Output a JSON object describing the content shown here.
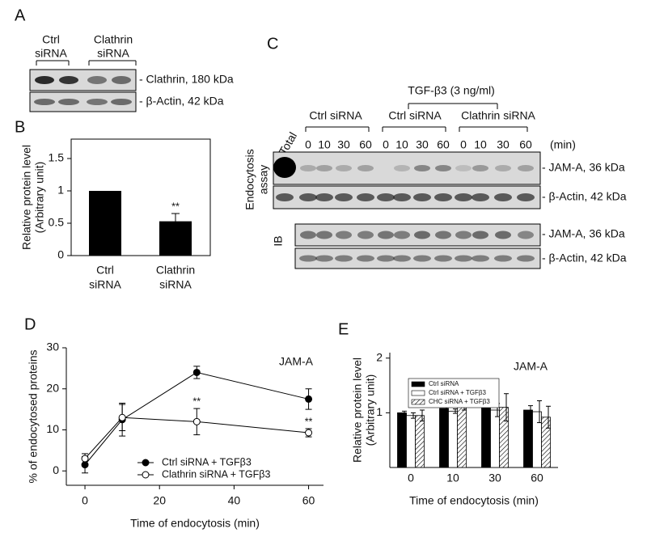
{
  "panel_labels": [
    "A",
    "B",
    "C",
    "D",
    "E"
  ],
  "panel_a": {
    "groups": [
      [
        "Ctrl",
        "siRNA"
      ],
      [
        "Clathrin",
        "siRNA"
      ]
    ],
    "bands": [
      "- Clathrin, 180 kDa",
      "- β-Actin, 42 kDa"
    ]
  },
  "panel_c": {
    "treatment": "TGF-β3 (3 ng/ml)",
    "groups": [
      "Ctrl siRNA",
      "Ctrl siRNA",
      "Clathrin siRNA"
    ],
    "total": "Total",
    "times": [
      "0",
      "10",
      "30",
      "60"
    ],
    "time_unit": "(min)",
    "assay": [
      "Endocytosis",
      "assay"
    ],
    "ib": "IB",
    "bands": [
      "- JAM-A, 36 kDa",
      "- β-Actin, 42 kDa",
      "- JAM-A, 36 kDa",
      "- β-Actin, 42 kDa"
    ]
  },
  "chart_data": [
    {
      "type": "bar",
      "ylabel": [
        "Relative protein level",
        "(Arbitrary unit)"
      ],
      "categories": [
        [
          "Ctrl",
          "siRNA"
        ],
        [
          "Clathrin",
          "siRNA"
        ]
      ],
      "values": [
        1,
        0.53
      ],
      "errors": [
        null,
        0.12
      ],
      "significance": [
        null,
        "**"
      ],
      "color": "#000000",
      "ylim": [
        0,
        1.8
      ],
      "yticks": [
        0,
        0.5,
        1,
        1.5
      ]
    },
    {
      "type": "line",
      "ylabel": [
        "% of endocytosed proteins"
      ],
      "xlabel": "Time of endocytosis (min)",
      "label": "JAM-A",
      "x": [
        0,
        10,
        30,
        60
      ],
      "xlim": [
        -5,
        64
      ],
      "xticks": [
        0,
        20,
        40,
        60
      ],
      "ylim": [
        -3.5,
        30
      ],
      "yticks": [
        0,
        10,
        20,
        30
      ],
      "series": [
        {
          "name": "Ctrl siRNA + TGFβ3",
          "color": "#000000",
          "marker_fill": "#000000",
          "values": [
            1.5,
            12.5,
            24,
            17.5
          ],
          "errors": [
            2,
            4,
            1.5,
            2.5
          ],
          "significance": [
            null,
            null,
            null,
            null
          ]
        },
        {
          "name": "Clathrin siRNA + TGFβ3",
          "color": "#000000",
          "marker_fill": "#ffffff",
          "values": [
            3,
            13,
            12,
            9.3
          ],
          "errors": [
            1.2,
            3.2,
            3.2,
            1
          ],
          "significance": [
            null,
            null,
            "**",
            "**"
          ]
        }
      ]
    },
    {
      "type": "grouped_bar",
      "ylabel": [
        "Relative protein level",
        "(Arbitrary unit)"
      ],
      "xlabel": "Time of endocytosis (min)",
      "label": "JAM-A",
      "categories": [
        "0",
        "10",
        "30",
        "60"
      ],
      "ylim": [
        0,
        2.1
      ],
      "yticks": [
        1,
        2
      ],
      "series": [
        {
          "name": "Ctrl siRNA",
          "color": "#000000",
          "hatch": false,
          "values": [
            1,
            1.08,
            1.1,
            1.05
          ],
          "errors": [
            0.03,
            0.1,
            0.12,
            0.08
          ]
        },
        {
          "name": "Ctrl siRNA + TGFβ3",
          "color": "#ffffff",
          "hatch": false,
          "values": [
            0.95,
            1.03,
            1.05,
            1.02
          ],
          "errors": [
            0.05,
            0.04,
            0.12,
            0.2
          ]
        },
        {
          "name": "CHC siRNA + TGFβ3",
          "color": "#ffffff",
          "hatch": true,
          "values": [
            0.95,
            1.15,
            1.1,
            0.92
          ],
          "errors": [
            0.1,
            0.1,
            0.25,
            0.2
          ]
        }
      ]
    }
  ]
}
